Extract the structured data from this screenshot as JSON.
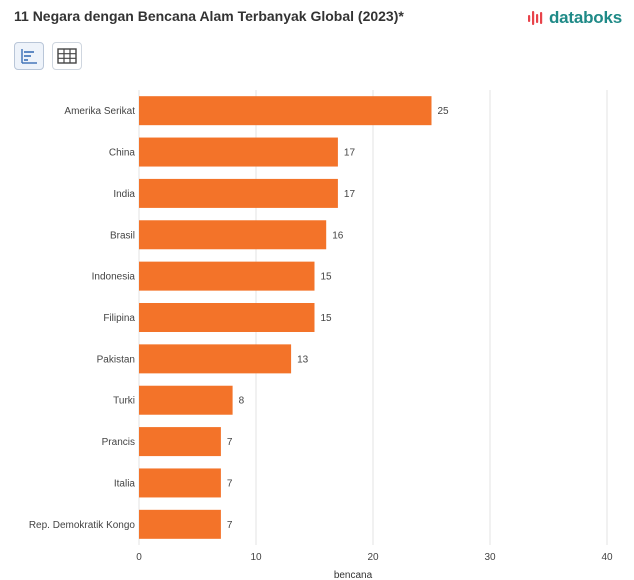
{
  "header": {
    "title": "11 Negara dengan Bencana Alam Terbanyak Global (2023)*",
    "brand": "databoks"
  },
  "toolbar": {
    "buttons": [
      {
        "icon": "bar-chart-view-icon",
        "active": true
      },
      {
        "icon": "table-view-icon",
        "active": false
      }
    ]
  },
  "colors": {
    "bar": "#f37329",
    "grid": "#e3e3e3",
    "brand": "#1f8a87",
    "brand_accent": "#e8434a"
  },
  "chart_data": {
    "type": "bar",
    "orientation": "horizontal",
    "title": "",
    "xlabel": "bencana",
    "ylabel": "",
    "categories": [
      "Amerika Serikat",
      "China",
      "India",
      "Brasil",
      "Indonesia",
      "Filipina",
      "Pakistan",
      "Turki",
      "Prancis",
      "Italia",
      "Rep. Demokratik Kongo"
    ],
    "values": [
      25,
      17,
      17,
      16,
      15,
      15,
      13,
      8,
      7,
      7,
      7
    ],
    "xlim": [
      0,
      40
    ],
    "xticks": [
      0,
      10,
      20,
      30,
      40
    ],
    "grid": true,
    "data_labels": true
  }
}
